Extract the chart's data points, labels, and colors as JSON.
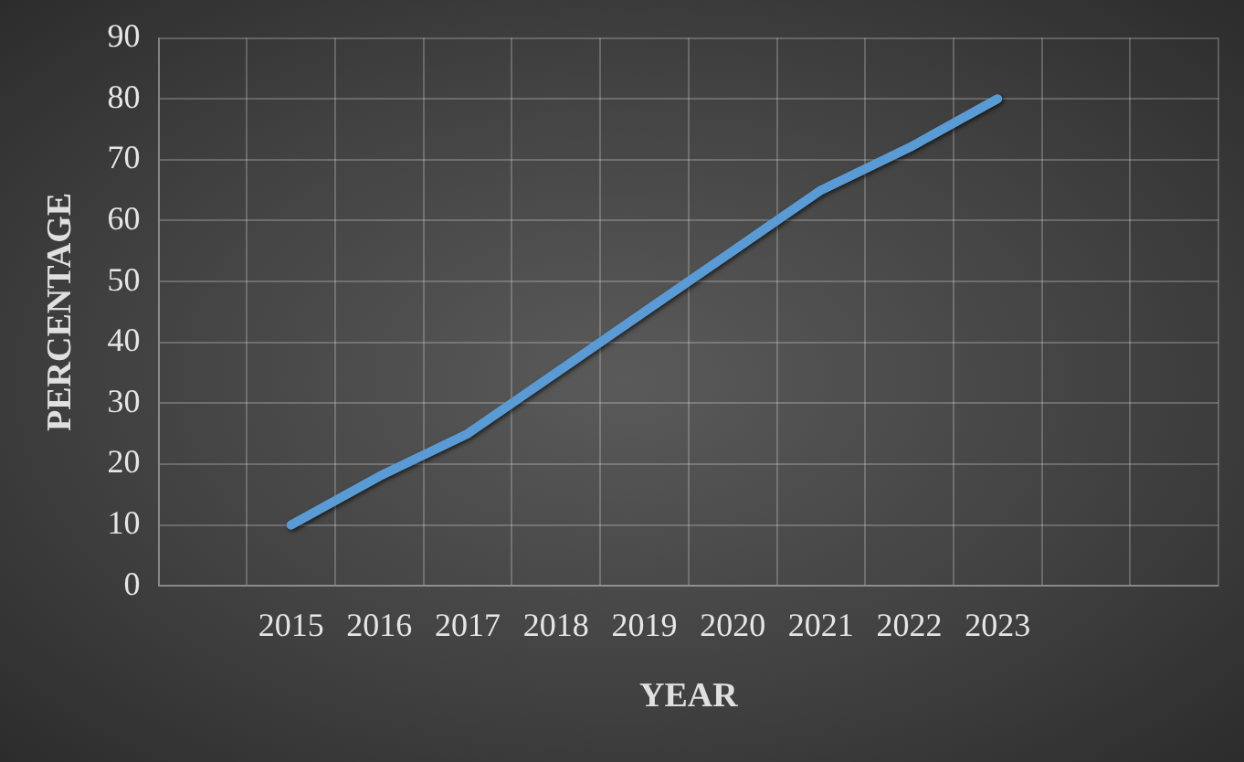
{
  "chart_data": {
    "type": "line",
    "xlabel": "YEAR",
    "ylabel": "PERCENTAGE",
    "categories": [
      null,
      "2015",
      "2016",
      "2017",
      "2018",
      "2019",
      "2020",
      "2021",
      "2022",
      "2023",
      null,
      null
    ],
    "series": [
      {
        "color": "#5b9bd5",
        "values": [
          null,
          10,
          18,
          25,
          35,
          45,
          55,
          65,
          72,
          80,
          null,
          null
        ]
      }
    ],
    "ylim": [
      0,
      90
    ],
    "yticks": [
      0,
      10,
      20,
      30,
      40,
      50,
      60,
      70,
      80,
      90
    ],
    "grid": true,
    "legend": false,
    "marker": "none",
    "line_style": "solid"
  }
}
